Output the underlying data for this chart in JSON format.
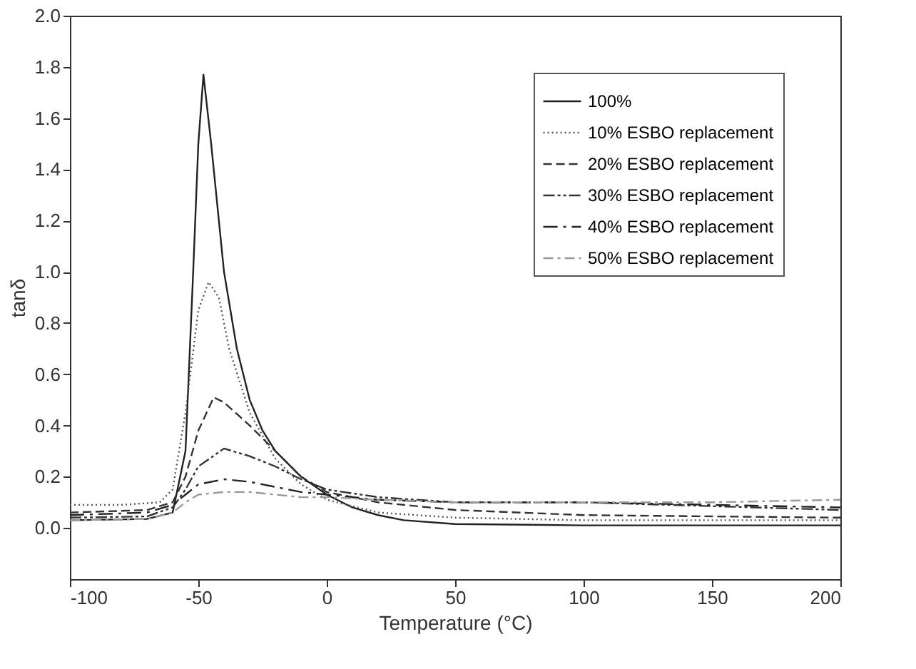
{
  "chart_data": {
    "type": "line",
    "xlabel": "Temperature (°C)",
    "ylabel": "tanδ",
    "xlim": [
      -100,
      200
    ],
    "ylim": [
      -0.2,
      2.0
    ],
    "xticks": [
      -100,
      -50,
      0,
      50,
      100,
      150,
      200
    ],
    "yticks": [
      {
        "value": 0,
        "label": "0.0"
      },
      0.2,
      0.4,
      0.6,
      0.8,
      {
        "value": 1,
        "label": "1.0"
      },
      1.2,
      1.4,
      1.6,
      1.8,
      {
        "value": 2,
        "label": "2.0"
      }
    ],
    "grid": false,
    "legend": "top right",
    "marker": "none",
    "series": [
      {
        "name": "100%",
        "color": "#222222",
        "line_style": "solid",
        "x": [
          -100,
          -70,
          -60,
          -55,
          -52,
          -50,
          -48,
          -45,
          -40,
          -35,
          -30,
          -25,
          -20,
          -10,
          0,
          10,
          20,
          30,
          50,
          100,
          200
        ],
        "values": [
          0.03,
          0.035,
          0.06,
          0.3,
          1.0,
          1.5,
          1.77,
          1.5,
          1.0,
          0.7,
          0.5,
          0.38,
          0.3,
          0.2,
          0.13,
          0.08,
          0.05,
          0.03,
          0.015,
          0.01,
          0.01
        ]
      },
      {
        "name": "10% ESBO replacement",
        "color": "#555555",
        "line_style": "dotted",
        "x": [
          -100,
          -80,
          -65,
          -60,
          -55,
          -50,
          -46,
          -42,
          -38,
          -30,
          -25,
          -20,
          -10,
          0,
          20,
          50,
          100,
          200
        ],
        "values": [
          0.09,
          0.09,
          0.1,
          0.15,
          0.45,
          0.85,
          0.96,
          0.9,
          0.7,
          0.45,
          0.36,
          0.27,
          0.17,
          0.11,
          0.06,
          0.04,
          0.03,
          0.03
        ]
      },
      {
        "name": "20% ESBO replacement",
        "color": "#333333",
        "line_style": "dashed",
        "x": [
          -100,
          -70,
          -60,
          -55,
          -50,
          -44,
          -40,
          -30,
          -20,
          -10,
          0,
          20,
          50,
          100,
          200
        ],
        "values": [
          0.06,
          0.07,
          0.1,
          0.2,
          0.38,
          0.51,
          0.49,
          0.4,
          0.3,
          0.2,
          0.14,
          0.1,
          0.07,
          0.05,
          0.04
        ]
      },
      {
        "name": "30% ESBO replacement",
        "color": "#333333",
        "line_style": "dashed",
        "x": [
          -100,
          -70,
          -60,
          -55,
          -50,
          -40,
          -30,
          -20,
          -10,
          0,
          20,
          50,
          100,
          200
        ],
        "values": [
          0.04,
          0.045,
          0.08,
          0.15,
          0.24,
          0.31,
          0.28,
          0.24,
          0.19,
          0.15,
          0.12,
          0.1,
          0.1,
          0.07
        ]
      },
      {
        "name": "40% ESBO replacement",
        "color": "#222222",
        "line_style": "dashed",
        "x": [
          -100,
          -70,
          -60,
          -55,
          -50,
          -40,
          -30,
          -20,
          -10,
          0,
          20,
          50,
          100,
          150,
          200
        ],
        "values": [
          0.05,
          0.06,
          0.09,
          0.13,
          0.17,
          0.19,
          0.18,
          0.16,
          0.14,
          0.13,
          0.11,
          0.1,
          0.1,
          0.09,
          0.08
        ]
      },
      {
        "name": "50% ESBO replacement",
        "color": "#999999",
        "line_style": "dashed",
        "x": [
          -100,
          -70,
          -60,
          -55,
          -50,
          -40,
          -30,
          -20,
          -10,
          0,
          20,
          50,
          100,
          150,
          200
        ],
        "values": [
          0.03,
          0.035,
          0.06,
          0.1,
          0.13,
          0.14,
          0.14,
          0.13,
          0.12,
          0.12,
          0.11,
          0.1,
          0.1,
          0.1,
          0.11
        ]
      }
    ]
  }
}
